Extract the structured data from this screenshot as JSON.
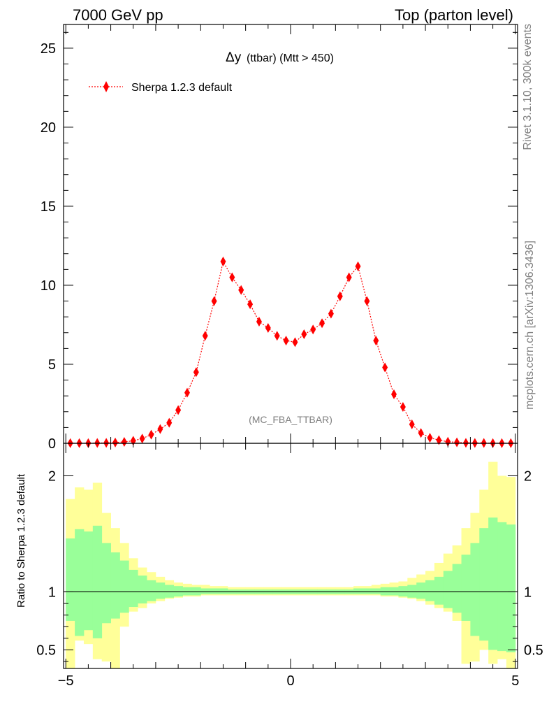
{
  "header": {
    "left": "7000 GeV pp",
    "right": "Top (parton level)"
  },
  "side_labels": {
    "rivet": "Rivet 3.1.10,  300k events",
    "mcplots": "mcplots.cern.ch [arXiv:1306.3436]"
  },
  "colors": {
    "mc": "#ff0000",
    "band_inner": "#99ff99",
    "band_outer": "#ffff99",
    "reference_line": "#000000"
  },
  "chart_data": [
    {
      "type": "line",
      "title_prefix": "Δy",
      "title_rest": " (ttbar) (Mtt > 450)",
      "watermark": "(MC_FBA_TTBAR)",
      "xlim": [
        -5.05,
        5.05
      ],
      "ylim": [
        0,
        26.5
      ],
      "x_ticks": [
        -5,
        0,
        5
      ],
      "y_ticks": [
        0,
        5,
        10,
        15,
        20,
        25
      ],
      "y_tick_labels": [
        "0",
        "5",
        "10",
        "15",
        "20",
        "25"
      ],
      "series": [
        {
          "name": "Sherpa 1.2.3 default",
          "marker": "diamond",
          "x": [
            -4.9,
            -4.7,
            -4.5,
            -4.3,
            -4.1,
            -3.9,
            -3.7,
            -3.5,
            -3.3,
            -3.1,
            -2.9,
            -2.7,
            -2.5,
            -2.3,
            -2.1,
            -1.9,
            -1.7,
            -1.5,
            -1.3,
            -1.1,
            -0.9,
            -0.7,
            -0.5,
            -0.3,
            -0.1,
            0.1,
            0.3,
            0.5,
            0.7,
            0.9,
            1.1,
            1.3,
            1.5,
            1.7,
            1.9,
            2.1,
            2.3,
            2.5,
            2.7,
            2.9,
            3.1,
            3.3,
            3.5,
            3.7,
            3.9,
            4.1,
            4.3,
            4.5,
            4.7,
            4.9
          ],
          "values": [
            0.01,
            0.01,
            0.01,
            0.02,
            0.03,
            0.05,
            0.09,
            0.16,
            0.3,
            0.55,
            0.9,
            1.3,
            2.1,
            3.2,
            4.5,
            6.8,
            9.0,
            11.5,
            10.5,
            9.7,
            8.8,
            7.7,
            7.3,
            6.8,
            6.5,
            6.4,
            6.9,
            7.2,
            7.6,
            8.2,
            9.3,
            10.5,
            11.2,
            9.0,
            6.5,
            4.8,
            3.1,
            2.3,
            1.2,
            0.65,
            0.35,
            0.2,
            0.1,
            0.06,
            0.03,
            0.02,
            0.02,
            0.01,
            0.01,
            0.01
          ]
        }
      ]
    },
    {
      "type": "area",
      "ylabel": "Ratio to Sherpa 1.2.3 default",
      "xlim": [
        -5.05,
        5.05
      ],
      "ylim": [
        0.34,
        2.28
      ],
      "x_ticks": [
        -5,
        0,
        5
      ],
      "x_tick_labels": [
        "−5",
        "0",
        "5"
      ],
      "y_ticks": [
        0.5,
        1,
        2
      ],
      "y_tick_labels": [
        "0.5",
        "1",
        "2"
      ],
      "reference": 1,
      "bin_width": 0.2,
      "x": [
        -4.9,
        -4.7,
        -4.5,
        -4.3,
        -4.1,
        -3.9,
        -3.7,
        -3.5,
        -3.3,
        -3.1,
        -2.9,
        -2.7,
        -2.5,
        -2.3,
        -2.1,
        -1.9,
        -1.7,
        -1.5,
        -1.3,
        -1.1,
        -0.9,
        -0.7,
        -0.5,
        -0.3,
        -0.1,
        0.1,
        0.3,
        0.5,
        0.7,
        0.9,
        1.1,
        1.3,
        1.5,
        1.7,
        1.9,
        2.1,
        2.3,
        2.5,
        2.7,
        2.9,
        3.1,
        3.3,
        3.5,
        3.7,
        3.9,
        4.1,
        4.3,
        4.5,
        4.7,
        4.9
      ],
      "outer_band": {
        "upper": [
          1.8,
          1.9,
          1.88,
          1.94,
          1.68,
          1.55,
          1.42,
          1.29,
          1.21,
          1.17,
          1.13,
          1.1,
          1.08,
          1.07,
          1.06,
          1.06,
          1.05,
          1.05,
          1.04,
          1.04,
          1.04,
          1.04,
          1.04,
          1.04,
          1.04,
          1.04,
          1.04,
          1.04,
          1.04,
          1.04,
          1.04,
          1.04,
          1.05,
          1.05,
          1.06,
          1.07,
          1.08,
          1.09,
          1.12,
          1.15,
          1.18,
          1.25,
          1.33,
          1.4,
          1.55,
          1.68,
          1.88,
          2.12,
          2.0,
          1.99
        ],
        "lower": [
          0.3,
          0.58,
          0.55,
          0.42,
          0.4,
          0.28,
          0.7,
          0.83,
          0.86,
          0.9,
          0.92,
          0.94,
          0.95,
          0.96,
          0.96,
          0.97,
          0.97,
          0.97,
          0.97,
          0.97,
          0.97,
          0.97,
          0.97,
          0.97,
          0.97,
          0.97,
          0.97,
          0.97,
          0.97,
          0.97,
          0.97,
          0.97,
          0.97,
          0.97,
          0.97,
          0.96,
          0.96,
          0.95,
          0.94,
          0.92,
          0.89,
          0.86,
          0.83,
          0.75,
          0.38,
          0.4,
          0.5,
          0.38,
          0.42,
          0.3
        ]
      },
      "inner_band": {
        "upper": [
          1.46,
          1.54,
          1.52,
          1.57,
          1.42,
          1.34,
          1.27,
          1.19,
          1.14,
          1.1,
          1.08,
          1.06,
          1.05,
          1.04,
          1.04,
          1.03,
          1.03,
          1.03,
          1.02,
          1.02,
          1.02,
          1.02,
          1.02,
          1.02,
          1.02,
          1.02,
          1.02,
          1.02,
          1.02,
          1.02,
          1.02,
          1.02,
          1.03,
          1.03,
          1.03,
          1.04,
          1.04,
          1.05,
          1.06,
          1.08,
          1.1,
          1.13,
          1.18,
          1.24,
          1.32,
          1.42,
          1.55,
          1.64,
          1.6,
          1.58
        ],
        "lower": [
          0.75,
          0.62,
          0.67,
          0.6,
          0.73,
          0.77,
          0.82,
          0.87,
          0.9,
          0.92,
          0.94,
          0.95,
          0.96,
          0.97,
          0.97,
          0.98,
          0.98,
          0.98,
          0.98,
          0.98,
          0.98,
          0.98,
          0.98,
          0.98,
          0.98,
          0.98,
          0.98,
          0.98,
          0.98,
          0.98,
          0.98,
          0.98,
          0.98,
          0.98,
          0.98,
          0.97,
          0.97,
          0.96,
          0.95,
          0.94,
          0.92,
          0.89,
          0.86,
          0.82,
          0.75,
          0.62,
          0.58,
          0.5,
          0.49,
          0.48
        ]
      }
    }
  ]
}
